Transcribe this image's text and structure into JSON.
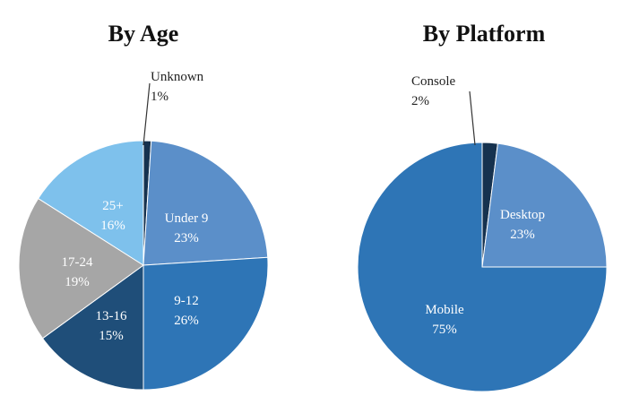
{
  "chart_data": [
    {
      "type": "pie",
      "title": "By Age",
      "slices": [
        {
          "label": "Unknown",
          "value": 1,
          "value_text": "1%",
          "color": "#16324f"
        },
        {
          "label": "Under 9",
          "value": 23,
          "value_text": "23%",
          "color": "#5b8fc9"
        },
        {
          "label": "9-12",
          "value": 26,
          "value_text": "26%",
          "color": "#2e75b6"
        },
        {
          "label": "13-16",
          "value": 15,
          "value_text": "15%",
          "color": "#1f4e79"
        },
        {
          "label": "17-24",
          "value": 19,
          "value_text": "19%",
          "color": "#a6a6a6"
        },
        {
          "label": "25+",
          "value": 16,
          "value_text": "16%",
          "color": "#7ec1ec"
        }
      ]
    },
    {
      "type": "pie",
      "title": "By Platform",
      "slices": [
        {
          "label": "Console",
          "value": 2,
          "value_text": "2%",
          "color": "#16324f"
        },
        {
          "label": "Desktop",
          "value": 23,
          "value_text": "23%",
          "color": "#5b8fc9"
        },
        {
          "label": "Mobile",
          "value": 75,
          "value_text": "75%",
          "color": "#2e75b6"
        }
      ]
    }
  ]
}
